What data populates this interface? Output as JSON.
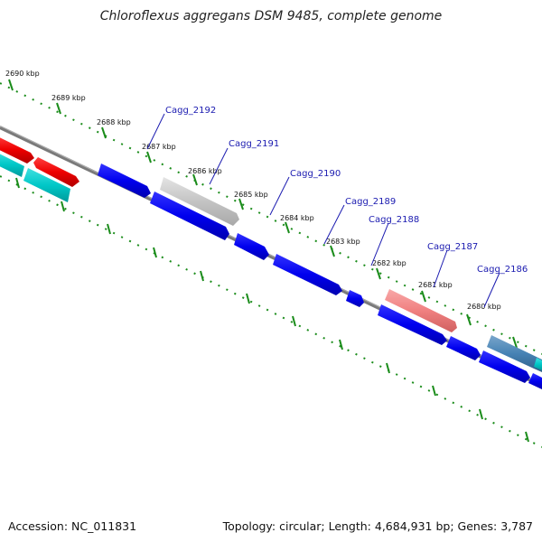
{
  "title": "Chloroflexus aggregans DSM 9485, complete genome",
  "footer": {
    "accession": "Accession: NC_011831",
    "summary": "Topology: circular; Length: 4,684,931 bp; Genes: 3,787"
  },
  "colors": {
    "backbone": "#808080",
    "tick": "#1a8c1a",
    "gene_blue": "#0000ee",
    "gene_gray": "#c8c8c8",
    "gene_red": "#ee0000",
    "gene_pink": "#f08080",
    "gene_cyan": "#00c8c8",
    "gene_steel": "#4682b4",
    "label": "#1a1ab0"
  },
  "tick_labels": [
    {
      "text": "2690 kbp"
    },
    {
      "text": "2689 kbp"
    },
    {
      "text": "2688 kbp"
    },
    {
      "text": "2687 kbp"
    },
    {
      "text": "2686 kbp"
    },
    {
      "text": "2685 kbp"
    },
    {
      "text": "2684 kbp"
    },
    {
      "text": "2683 kbp"
    },
    {
      "text": "2682 kbp"
    },
    {
      "text": "2681 kbp"
    },
    {
      "text": "2680 kbp"
    }
  ],
  "gene_labels": [
    {
      "text": "Cagg_2192"
    },
    {
      "text": "Cagg_2191"
    },
    {
      "text": "Cagg_2190"
    },
    {
      "text": "Cagg_2189"
    },
    {
      "text": "Cagg_2188"
    },
    {
      "text": "Cagg_2187"
    },
    {
      "text": "Cagg_2186"
    }
  ]
}
